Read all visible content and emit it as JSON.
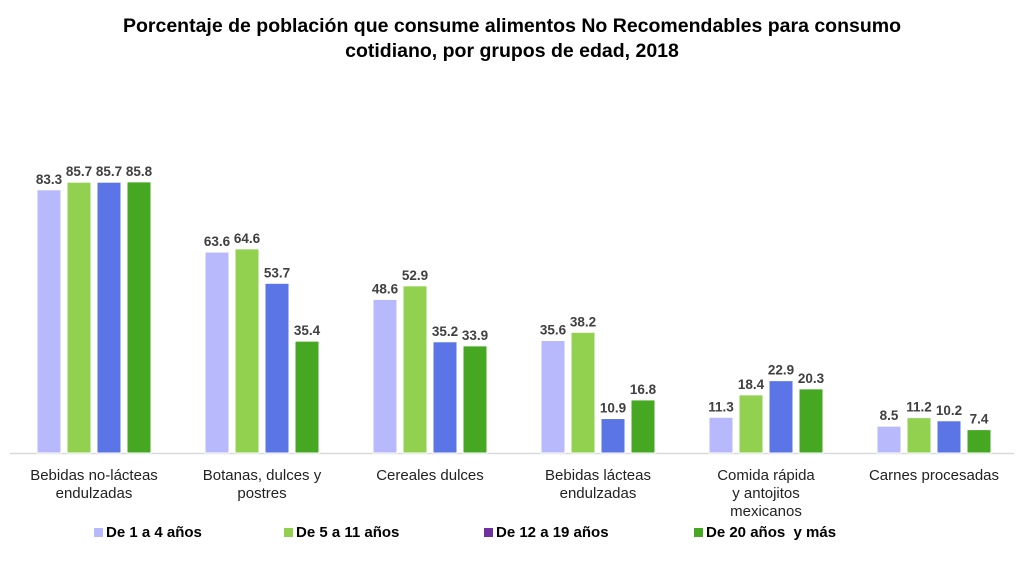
{
  "chart_data": {
    "type": "bar",
    "title_line1": "Porcentaje de población que consume alimentos No Recomendables para consumo",
    "title_line2": "cotidiano, por grupos de edad, 2018",
    "xlabel": "",
    "ylabel": "",
    "ylim": [
      0,
      90
    ],
    "grid": false,
    "legend_position": "bottom",
    "categories": [
      [
        "Bebidas no-lácteas",
        "endulzadas"
      ],
      [
        "Botanas, dulces y",
        "postres"
      ],
      [
        "Cereales dulces"
      ],
      [
        "Bebidas lácteas",
        "endulzadas"
      ],
      [
        "Comida rápida",
        "y antojitos",
        "mexicanos"
      ],
      [
        "Carnes procesadas"
      ]
    ],
    "series": [
      {
        "name": "De 1 a 4 años",
        "color": "#b8b8fc",
        "legend_color": "#b8b8fc",
        "values": [
          83.3,
          63.6,
          48.6,
          35.6,
          11.3,
          8.5
        ],
        "labels": [
          "83.3",
          "63.6",
          "48.6",
          "35.6",
          "11.3",
          "8.5"
        ]
      },
      {
        "name": "De 5 a 11 años",
        "color": "#92d050",
        "legend_color": "#92d050",
        "values": [
          85.7,
          64.6,
          52.9,
          38.2,
          18.4,
          11.2
        ],
        "labels": [
          "85.7",
          "64.6",
          "52.9",
          "38.2",
          "18.4",
          "11.2"
        ]
      },
      {
        "name": "De 12 a 19 años",
        "color": "#5b75e6",
        "legend_color": "#7030a0",
        "values": [
          85.7,
          53.7,
          35.2,
          10.9,
          22.9,
          10.2
        ],
        "labels": [
          "85.7",
          "53.7",
          "35.2",
          "10.9",
          "22.9",
          "10.2"
        ]
      },
      {
        "name": "De 20 años  y más",
        "color": "#46a822",
        "legend_color": "#46a822",
        "values": [
          85.8,
          35.4,
          33.9,
          16.8,
          20.3,
          7.4
        ],
        "labels": [
          "85.8",
          "35.4",
          "33.9",
          "16.8",
          "20.3",
          "7.4"
        ]
      }
    ]
  }
}
